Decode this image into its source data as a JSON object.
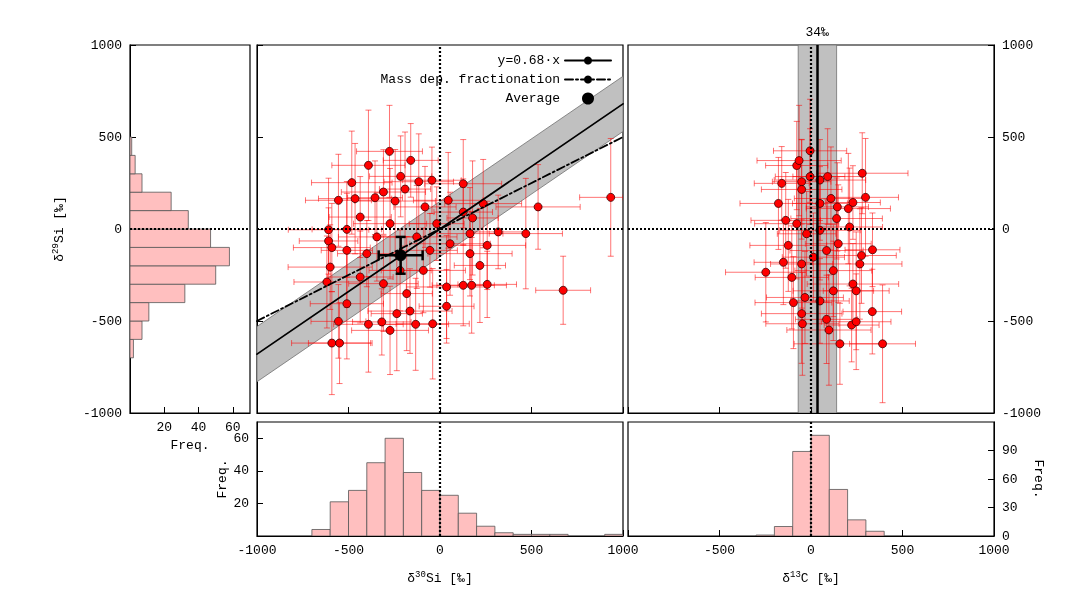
{
  "chart_data": [
    {
      "type": "histogram",
      "orientation": "horizontal",
      "color": "#ffbfbf",
      "bins": [
        -700,
        -600,
        -500,
        -400,
        -300,
        -200,
        -100,
        0,
        100,
        200,
        300,
        400,
        500
      ],
      "values": [
        2,
        7,
        11,
        32,
        50,
        58,
        47,
        34,
        24,
        7,
        3,
        1
      ],
      "xlim": [
        0,
        70
      ],
      "xticks": [
        20,
        40,
        60
      ],
      "ylim": [
        -1000,
        1000
      ],
      "yticks": [
        -1000,
        -500,
        0,
        500,
        1000
      ],
      "xlabel": "Freq.",
      "ylabel": "δ$^{29}$Si [‰]",
      "ref_lines": [
        {
          "axis": "y",
          "value": 0,
          "line_style": "dotted"
        }
      ]
    },
    {
      "type": "scatter",
      "legend": "top right",
      "tick_labels": false,
      "xlim": [
        -1000,
        1000
      ],
      "xticks": [
        -1000,
        -500,
        0,
        500,
        1000
      ],
      "ylim": [
        -1000,
        1000
      ],
      "yticks": [
        -1000,
        -500,
        0,
        500,
        1000
      ],
      "series": [
        {
          "type": "scatter",
          "marker": "circle",
          "color": "#ff0000",
          "x": [
            -276,
            -391,
            -160,
            -482,
            -215,
            -116,
            -44,
            127,
            -191,
            -309,
            -555,
            -464,
            -355,
            -245,
            -82,
            45,
            127,
            236,
            178,
            536,
            933,
            469,
            318,
            -609,
            -436,
            -509,
            -609,
            -591,
            -509,
            -600,
            -618,
            -509,
            -555,
            -591,
            -549,
            -391,
            -318,
            -273,
            -236,
            -164,
            -133,
            -40,
            36,
            36,
            127,
            173,
            258,
            258,
            218,
            164,
            164,
            673,
            -55,
            -127,
            -218,
            -309,
            -400,
            -345,
            -182,
            -91,
            -436,
            -273,
            -18,
            55
          ],
          "values": [
            422,
            346,
            373,
            252,
            286,
            257,
            265,
            246,
            217,
            201,
            156,
            165,
            170,
            152,
            120,
            156,
            92,
            138,
            60,
            120,
            172,
            -25,
            -16,
            -4,
            65,
            -2,
            -65,
            -101,
            -116,
            -207,
            -288,
            -406,
            -502,
            -620,
            -620,
            -518,
            -505,
            -551,
            -460,
            -446,
            -518,
            -515,
            -420,
            -315,
            -306,
            -306,
            -301,
            -89,
            -198,
            -134,
            -25,
            -333,
            -116,
            -43,
            -225,
            -297,
            -134,
            -43,
            -351,
            -225,
            -261,
            29,
            29,
            -80
          ],
          "xerrors": [
            180,
            200,
            150,
            220,
            170,
            190,
            160,
            210,
            140,
            230,
            180,
            200,
            150,
            220,
            170,
            190,
            160,
            210,
            140,
            230,
            [
              763,
              1000
            ],
            200,
            150,
            220,
            170,
            190,
            160,
            210,
            140,
            230,
            180,
            200,
            150,
            220,
            170,
            190,
            160,
            210,
            140,
            230,
            180,
            200,
            150,
            220,
            170,
            190,
            160,
            210,
            140,
            230,
            180,
            150,
            150,
            220,
            170,
            190,
            160,
            210,
            140,
            230,
            180,
            200,
            150,
            220
          ],
          "errors": [
            250,
            300,
            200,
            280,
            220,
            260,
            180,
            240,
            310,
            230,
            250,
            300,
            200,
            280,
            220,
            260,
            180,
            240,
            310,
            230,
            320,
            300,
            200,
            280,
            220,
            260,
            180,
            240,
            310,
            230,
            250,
            300,
            200,
            280,
            220,
            260,
            180,
            240,
            310,
            230,
            250,
            300,
            200,
            280,
            220,
            260,
            180,
            240,
            310,
            230,
            250,
            185,
            200,
            280,
            220,
            260,
            180,
            240,
            310,
            230,
            250,
            300,
            200,
            280
          ]
        },
        {
          "type": "line",
          "name": "y=0.68·x",
          "color": "#000000",
          "marker": "none",
          "line_style": "solid",
          "x": [
            -1000,
            1000
          ],
          "values": [
            -680,
            680
          ],
          "lower": [
            -830,
            530
          ],
          "upper": [
            -530,
            830
          ]
        },
        {
          "type": "line",
          "name": "Mass dep. fractionation",
          "color": "#000000",
          "marker": "none",
          "line_style": "dashed",
          "x": [
            -1000,
            1000
          ],
          "values": [
            -500,
            500
          ]
        },
        {
          "type": "scatter",
          "name": "Average",
          "marker": "circle",
          "color": "#000000",
          "x": [
            -215
          ],
          "values": [
            -143
          ],
          "xerrors": [
            120
          ],
          "errors": [
            100
          ]
        }
      ],
      "ref_lines": [
        {
          "axis": "x",
          "value": 0,
          "line_style": "dotted"
        },
        {
          "axis": "y",
          "value": 0,
          "line_style": "dotted"
        }
      ]
    },
    {
      "type": "scatter",
      "marker": "circle",
      "tick_labels": "y",
      "xlim": [
        -1000,
        1000
      ],
      "xticks": [
        -1000,
        -500,
        0,
        500,
        1000
      ],
      "ylim": [
        -1000,
        1000
      ],
      "yticks": [
        -1000,
        -500,
        0,
        500,
        1000
      ],
      "series": [
        {
          "type": "scatter",
          "color": "#ff0000",
          "x": [
            -5,
            -78,
            -65,
            -160,
            91,
            280,
            298,
            -178,
            -51,
            -51,
            109,
            144,
            204,
            229,
            -138,
            140,
            211,
            -124,
            -151,
            -247,
            -105,
            -51,
            267,
            336,
            276,
            229,
            247,
            122,
            335,
            -51,
            -47,
            85,
            98,
            222,
            247,
            158,
            391,
            -96,
            -24,
            49,
            85,
            13,
            -78,
            49,
            -5,
            49,
            149,
            -33,
            49,
            122
          ],
          "values": [
            425,
            345,
            372,
            248,
            285,
            303,
            172,
            139,
            257,
            215,
            166,
            120,
            111,
            144,
            47,
            57,
            11,
            -89,
            -181,
            -235,
            -263,
            -190,
            -190,
            -113,
            -144,
            -299,
            -336,
            -226,
            -449,
            -460,
            -515,
            -491,
            -549,
            -522,
            -504,
            -624,
            -624,
            -400,
            -26,
            -7,
            -117,
            -153,
            29,
            139,
            285,
            266,
            -80,
            -372,
            -391,
            -336
          ],
          "xerrors": [
            200,
            170,
            230,
            150,
            190,
            250,
            180,
            210,
            160,
            220,
            200,
            170,
            230,
            150,
            190,
            250,
            180,
            210,
            160,
            220,
            200,
            170,
            230,
            150,
            190,
            250,
            180,
            210,
            160,
            220,
            200,
            170,
            230,
            150,
            190,
            250,
            180,
            210,
            160,
            220,
            200,
            170,
            230,
            150,
            190,
            250,
            180,
            210,
            160,
            220
          ],
          "errors": [
            280,
            240,
            300,
            200,
            260,
            220,
            320,
            250,
            230,
            270,
            280,
            240,
            300,
            200,
            260,
            220,
            320,
            250,
            230,
            270,
            280,
            240,
            300,
            200,
            260,
            220,
            320,
            250,
            230,
            270,
            280,
            240,
            300,
            200,
            260,
            220,
            320,
            250,
            230,
            270,
            280,
            240,
            300,
            200,
            260,
            220,
            320,
            250,
            230,
            270
          ]
        }
      ],
      "bands": [
        {
          "axis": "x",
          "from": -70,
          "to": 140,
          "color": "#c0c0c0"
        }
      ],
      "ref_lines": [
        {
          "axis": "x",
          "value": 0,
          "line_style": "dotted"
        },
        {
          "axis": "y",
          "value": 0,
          "line_style": "dotted"
        },
        {
          "axis": "x",
          "value": 34,
          "label": "34‰",
          "line_style": "solid"
        }
      ]
    },
    {
      "type": "histogram",
      "color": "#ffbfbf",
      "bins": [
        -700,
        -600,
        -500,
        -400,
        -300,
        -200,
        -100,
        0,
        100,
        200,
        300,
        400,
        500,
        600,
        700,
        800,
        900,
        1000
      ],
      "values": [
        4,
        21,
        28,
        45,
        60,
        39,
        28,
        25,
        14,
        6,
        2,
        1,
        1,
        1,
        0,
        0,
        1
      ],
      "xlim": [
        -1000,
        1000
      ],
      "xticks": [
        -1000,
        -500,
        0,
        500,
        1000
      ],
      "ylim": [
        0,
        70
      ],
      "yticks": [
        20,
        40,
        60
      ],
      "xlabel": "δ$^{30}$Si [‰]",
      "ylabel": "Freq.",
      "ref_lines": [
        {
          "axis": "x",
          "value": 0,
          "line_style": "dotted"
        }
      ]
    },
    {
      "type": "histogram",
      "color": "#ffbfbf",
      "bins": [
        -300,
        -200,
        -100,
        0,
        100,
        200,
        300,
        400
      ],
      "values": [
        1,
        10,
        89,
        106,
        49,
        17,
        5
      ],
      "xlim": [
        -1000,
        1000
      ],
      "xticks": [
        {
          "value": -1000,
          "label": null
        },
        -500,
        0,
        500,
        1000
      ],
      "ylim": [
        0,
        120
      ],
      "yticks": [
        0,
        30,
        60,
        90
      ],
      "xlabel": "δ$^{13}$C [‰]",
      "ylabel": "Freq.",
      "ref_lines": [
        {
          "axis": "x",
          "value": 0,
          "line_style": "dotted"
        }
      ]
    }
  ]
}
